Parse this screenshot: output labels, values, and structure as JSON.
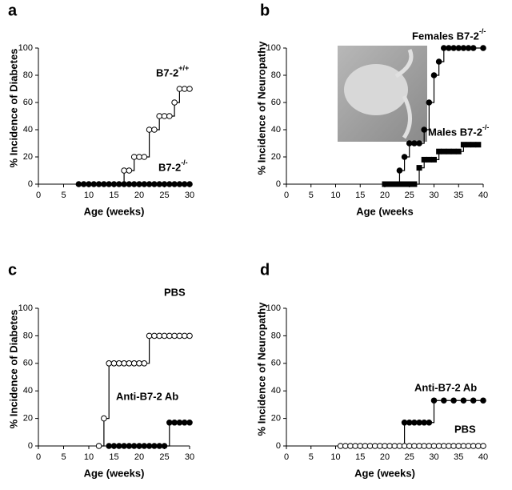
{
  "chart_data": [
    {
      "type": "line",
      "step": true,
      "panel": "a",
      "xlabel": "Age (weeks)",
      "ylabel": "% Incidence of Diabetes",
      "xlim": [
        0,
        30
      ],
      "xticks": [
        0,
        5,
        10,
        15,
        20,
        25,
        30
      ],
      "ylim": [
        0,
        100
      ],
      "yticks": [
        0,
        20,
        40,
        60,
        80,
        100
      ],
      "series": [
        {
          "name": "B7-2+/+",
          "color": "#000",
          "marker": "circle-open",
          "x": [
            17,
            18,
            19,
            20,
            21,
            22,
            23,
            24,
            25,
            26,
            27,
            28,
            29,
            30
          ],
          "values": [
            10,
            10,
            20,
            20,
            20,
            40,
            40,
            50,
            50,
            50,
            60,
            70,
            70,
            70
          ]
        },
        {
          "name": "B7-2-/-",
          "color": "#000",
          "marker": "circle",
          "x": [
            8,
            9,
            10,
            11,
            12,
            13,
            14,
            15,
            16,
            17,
            18,
            19,
            20,
            21,
            22,
            23,
            24,
            25,
            26,
            27,
            28,
            29,
            30
          ],
          "values": [
            0,
            0,
            0,
            0,
            0,
            0,
            0,
            0,
            0,
            0,
            0,
            0,
            0,
            0,
            0,
            0,
            0,
            0,
            0,
            0,
            0,
            0,
            0
          ]
        }
      ]
    },
    {
      "type": "line",
      "step": true,
      "panel": "b",
      "xlabel": "Age (weeks",
      "ylabel": "% Incidence of Neuropathy",
      "xlim": [
        0,
        40
      ],
      "xticks": [
        0,
        5,
        10,
        15,
        20,
        25,
        30,
        35,
        40
      ],
      "ylim": [
        0,
        100
      ],
      "yticks": [
        0,
        20,
        40,
        60,
        80,
        100
      ],
      "series": [
        {
          "name": "Females B7-2-/-",
          "color": "#000",
          "marker": "circle",
          "x": [
            23,
            24,
            25,
            26,
            27,
            28,
            29,
            30,
            31,
            32,
            33,
            34,
            35,
            36,
            37,
            38,
            40
          ],
          "values": [
            10,
            20,
            30,
            30,
            30,
            40,
            60,
            80,
            90,
            100,
            100,
            100,
            100,
            100,
            100,
            100,
            100
          ]
        },
        {
          "name": "Males B7-2-/-",
          "color": "#000",
          "marker": "square",
          "x": [
            20,
            21,
            22,
            23,
            24,
            25,
            26,
            27,
            28,
            29,
            30,
            31,
            32,
            33,
            34,
            35,
            36,
            37,
            38,
            39
          ],
          "values": [
            0,
            0,
            0,
            0,
            0,
            0,
            0,
            12,
            18,
            18,
            18,
            24,
            24,
            24,
            24,
            24,
            29,
            29,
            29,
            29
          ]
        }
      ]
    },
    {
      "type": "line",
      "step": true,
      "panel": "c",
      "xlabel": "Age (weeks)",
      "ylabel": "% Incidence of Diabetes",
      "xlim": [
        0,
        30
      ],
      "xticks": [
        0,
        5,
        10,
        15,
        20,
        25,
        30
      ],
      "ylim": [
        0,
        100
      ],
      "yticks": [
        0,
        20,
        40,
        60,
        80,
        100
      ],
      "series": [
        {
          "name": "PBS",
          "color": "#000",
          "marker": "circle-open",
          "x": [
            12,
            13,
            14,
            15,
            16,
            17,
            18,
            19,
            20,
            21,
            22,
            23,
            24,
            25,
            26,
            27,
            28,
            29,
            30
          ],
          "values": [
            0,
            20,
            60,
            60,
            60,
            60,
            60,
            60,
            60,
            60,
            80,
            80,
            80,
            80,
            80,
            80,
            80,
            80,
            80
          ]
        },
        {
          "name": "Anti-B7-2 Ab",
          "color": "#000",
          "marker": "circle",
          "x": [
            14,
            15,
            16,
            17,
            18,
            19,
            20,
            21,
            22,
            23,
            24,
            25,
            26,
            27,
            28,
            29,
            30
          ],
          "values": [
            0,
            0,
            0,
            0,
            0,
            0,
            0,
            0,
            0,
            0,
            0,
            0,
            17,
            17,
            17,
            17,
            17
          ]
        }
      ]
    },
    {
      "type": "line",
      "step": true,
      "panel": "d",
      "xlabel": "Age (weeks)",
      "ylabel": "% Incidence of Neuropathy",
      "xlim": [
        0,
        40
      ],
      "xticks": [
        0,
        5,
        10,
        15,
        20,
        25,
        30,
        35,
        40
      ],
      "ylim": [
        0,
        100
      ],
      "yticks": [
        0,
        20,
        40,
        60,
        80,
        100
      ],
      "series": [
        {
          "name": "Anti-B7-2 Ab",
          "color": "#000",
          "marker": "circle",
          "x": [
            24,
            25,
            26,
            27,
            28,
            29,
            30,
            32,
            34,
            36,
            38,
            40
          ],
          "values": [
            17,
            17,
            17,
            17,
            17,
            17,
            33,
            33,
            33,
            33,
            33,
            33
          ]
        },
        {
          "name": "PBS",
          "color": "#000",
          "marker": "circle-open",
          "x": [
            11,
            12,
            13,
            14,
            15,
            16,
            17,
            18,
            19,
            20,
            21,
            22,
            23,
            24,
            25,
            26,
            27,
            28,
            29,
            30,
            31,
            32,
            33,
            34,
            35,
            36,
            37,
            38,
            39,
            40
          ],
          "values": [
            0,
            0,
            0,
            0,
            0,
            0,
            0,
            0,
            0,
            0,
            0,
            0,
            0,
            0,
            0,
            0,
            0,
            0,
            0,
            0,
            0,
            0,
            0,
            0,
            0,
            0,
            0,
            0,
            0,
            0
          ]
        }
      ]
    }
  ]
}
